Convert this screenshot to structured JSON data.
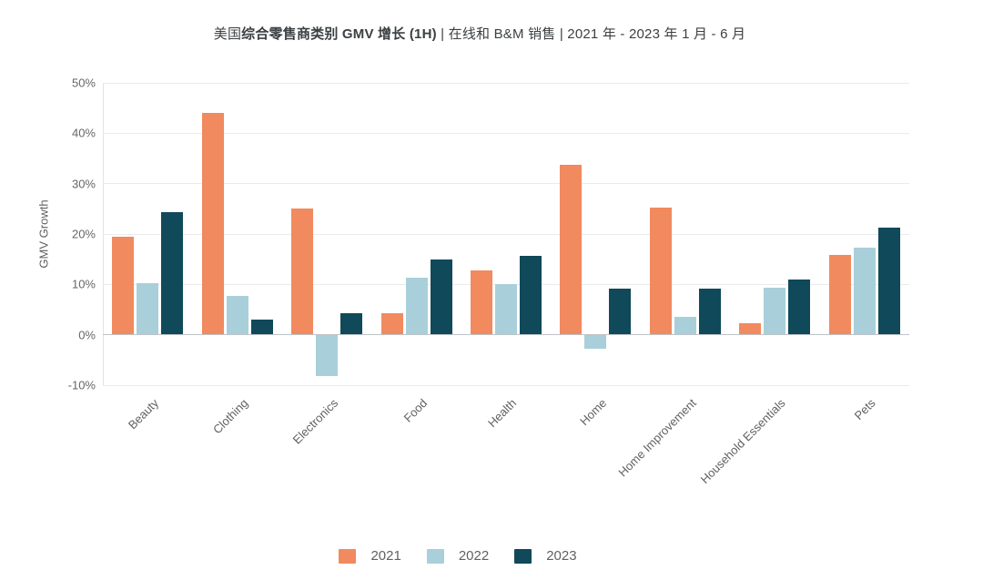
{
  "title": {
    "prefix": "美国",
    "bold": "综合零售商类别 GMV 增长 (1H)",
    "suffix": " | 在线和 B&M 销售 | 2021 年 - 2023 年 1 月 - 6 月"
  },
  "chart_data": {
    "type": "bar",
    "title": "美国综合零售商类别 GMV 增长 (1H) | 在线和 B&M 销售 | 2021 年 - 2023 年 1 月 - 6 月",
    "xlabel": "",
    "ylabel": "GMV Growth",
    "ylim": [
      -10,
      50
    ],
    "yticks": [
      50,
      40,
      30,
      20,
      10,
      0,
      -10
    ],
    "ytick_suffix": "%",
    "grid": true,
    "legend_position": "bottom",
    "categories": [
      "Beauty",
      "Clothing",
      "Electronics",
      "Food",
      "Health",
      "Home",
      "Home Improvement",
      "Household Essentials",
      "Pets"
    ],
    "series": [
      {
        "name": "2021",
        "color": "#F18A5F",
        "values": [
          19.4,
          44.0,
          25.0,
          4.2,
          12.7,
          33.8,
          25.3,
          2.2,
          15.9
        ]
      },
      {
        "name": "2022",
        "color": "#A9CFDA",
        "values": [
          10.3,
          7.7,
          -8.2,
          11.4,
          10.0,
          -2.7,
          3.6,
          9.4,
          17.3
        ]
      },
      {
        "name": "2023",
        "color": "#10495A",
        "values": [
          24.4,
          3.0,
          4.2,
          14.9,
          15.6,
          9.1,
          9.2,
          10.9,
          21.3
        ]
      }
    ],
    "colors": {
      "zero_line": "#bfc3c7",
      "gridline": "#ebebeb",
      "axis_line": "#e2e2e2"
    }
  }
}
